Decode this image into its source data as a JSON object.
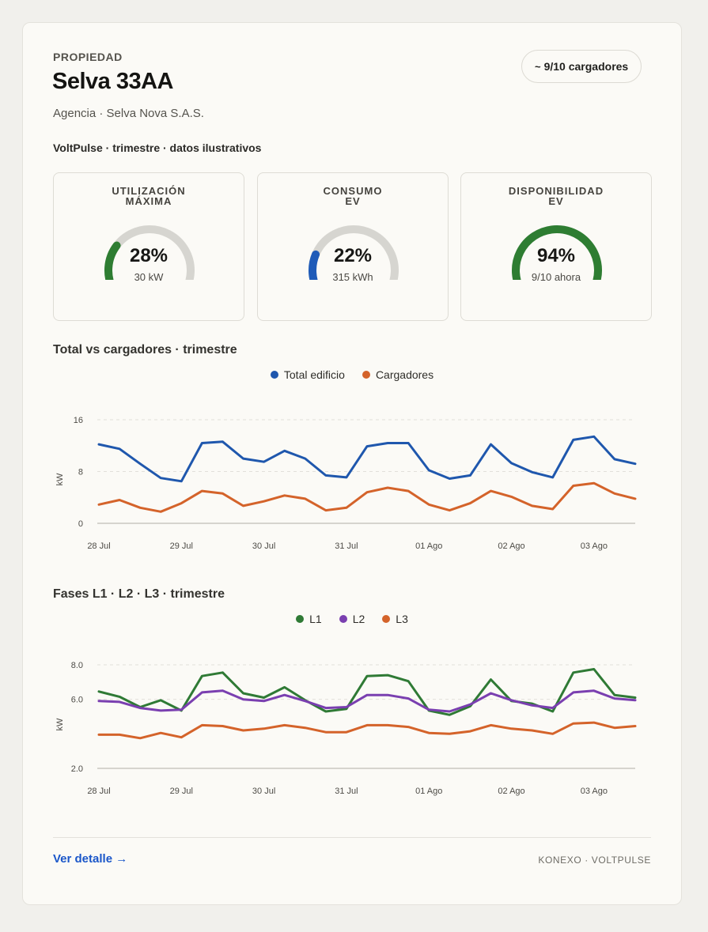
{
  "header": {
    "eyebrow": "PROPIEDAD",
    "title": "Selva 33AA",
    "agency": "Agencia · Selva Nova S.A.S.",
    "subtitle": "VoltPulse · trimestre · datos ilustrativos",
    "pill_icon": "~",
    "pill_label": "9/10 cargadores"
  },
  "kpis": [
    {
      "label": "UTILIZACIÓN\nMÁXIMA",
      "value": "28%",
      "fraction": 0.28,
      "sub": "30 kW",
      "color": "#2e7d32"
    },
    {
      "label": "CONSUMO\nEV",
      "value": "22%",
      "fraction": 0.22,
      "sub": "315 kWh",
      "color": "#1f5bb8"
    },
    {
      "label": "DISPONIBILIDAD\nEV",
      "value": "94%",
      "fraction": 0.94,
      "sub": "9/10 ahora",
      "color": "#2e7d32"
    }
  ],
  "chart1_title": "Total vs cargadores · trimestre",
  "chart2_title": "Fases L1 · L2 · L3 · trimestre",
  "chart_data": [
    {
      "type": "line",
      "title": "Total vs cargadores · trimestre",
      "ylabel": "kW",
      "ylim": [
        0,
        16
      ],
      "yticks": [
        "0",
        "8",
        "16"
      ],
      "xtick_labels": [
        "28 Jul",
        "29 Jul",
        "30 Jul",
        "31 Jul",
        "01 Ago",
        "02 Ago",
        "03 Ago"
      ],
      "legend": "top-center",
      "grid": true,
      "series": [
        {
          "name": "Total edificio",
          "color": "#1f57ad",
          "values": [
            12.2,
            11.5,
            9.2,
            7.0,
            6.5,
            12.4,
            12.6,
            10.0,
            9.5,
            11.2,
            10.0,
            7.4,
            7.1,
            11.9,
            12.4,
            12.4,
            8.2,
            6.9,
            7.4,
            12.2,
            9.3,
            7.9,
            7.1,
            12.9,
            13.4,
            9.9,
            9.2
          ]
        },
        {
          "name": "Cargadores",
          "color": "#d4632a",
          "values": [
            2.9,
            3.6,
            2.4,
            1.8,
            3.1,
            5.0,
            4.6,
            2.7,
            3.4,
            4.3,
            3.8,
            2.0,
            2.4,
            4.8,
            5.5,
            5.0,
            2.9,
            2.0,
            3.1,
            5.0,
            4.1,
            2.7,
            2.2,
            5.8,
            6.2,
            4.6,
            3.8
          ]
        }
      ]
    },
    {
      "type": "line",
      "title": "Fases L1 · L2 · L3 · trimestre",
      "ylabel": "kW",
      "ylim": [
        2.0,
        8.0
      ],
      "yticks": [
        "2.0",
        "6.0",
        "8.0"
      ],
      "xtick_labels": [
        "28 Jul",
        "29 Jul",
        "30 Jul",
        "31 Jul",
        "01 Ago",
        "02 Ago",
        "03 Ago"
      ],
      "legend": "top-center",
      "grid": true,
      "series": [
        {
          "name": "L1",
          "color": "#2f7a35",
          "values": [
            6.45,
            6.15,
            5.55,
            5.95,
            5.35,
            7.35,
            7.55,
            6.35,
            6.1,
            6.7,
            5.95,
            5.3,
            5.45,
            7.35,
            7.4,
            7.05,
            5.35,
            5.1,
            5.6,
            7.15,
            5.9,
            5.75,
            5.3,
            7.55,
            7.75,
            6.25,
            6.1
          ]
        },
        {
          "name": "L2",
          "color": "#7a3fb0",
          "values": [
            5.9,
            5.85,
            5.5,
            5.35,
            5.4,
            6.4,
            6.5,
            6.0,
            5.9,
            6.25,
            5.9,
            5.5,
            5.55,
            6.25,
            6.25,
            6.05,
            5.4,
            5.3,
            5.7,
            6.35,
            5.95,
            5.65,
            5.5,
            6.4,
            6.5,
            6.05,
            5.95
          ]
        },
        {
          "name": "L3",
          "color": "#d4632a",
          "values": [
            3.95,
            3.95,
            3.75,
            4.05,
            3.8,
            4.5,
            4.45,
            4.2,
            4.3,
            4.5,
            4.35,
            4.1,
            4.1,
            4.5,
            4.5,
            4.4,
            4.05,
            4.0,
            4.15,
            4.5,
            4.3,
            4.2,
            4.0,
            4.6,
            4.65,
            4.35,
            4.45
          ]
        }
      ]
    }
  ],
  "footer": {
    "link": "Ver detalle →",
    "brand": "KONEXO · VOLTPULSE"
  },
  "colors": {
    "gauge_track": "#d6d5d0",
    "grid": "#e2e0da",
    "axis": "#c9c7c0"
  }
}
